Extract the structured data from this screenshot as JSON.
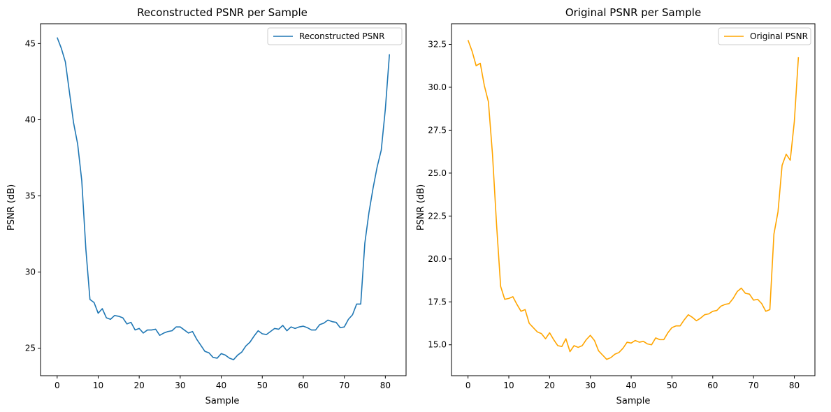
{
  "chart_data": [
    {
      "type": "line",
      "title": "Reconstructed PSNR per Sample",
      "xlabel": "Sample",
      "ylabel": "PSNR (dB)",
      "xlim": [
        -4.05,
        85.05
      ],
      "ylim": [
        23.2,
        46.3
      ],
      "xticks": [
        0,
        10,
        20,
        30,
        40,
        50,
        60,
        70,
        80
      ],
      "xtick_labels": [
        "0",
        "10",
        "20",
        "30",
        "40",
        "50",
        "60",
        "70",
        "80"
      ],
      "yticks": [
        25,
        30,
        35,
        40,
        45
      ],
      "ytick_labels": [
        "25",
        "30",
        "35",
        "40",
        "45"
      ],
      "grid": false,
      "legend_position": "top-right",
      "series": [
        {
          "name": "Reconstructed PSNR",
          "color": "#1f77b4",
          "x": [
            0,
            1,
            2,
            3,
            4,
            5,
            6,
            7,
            8,
            9,
            10,
            11,
            12,
            13,
            14,
            15,
            16,
            17,
            18,
            19,
            20,
            21,
            22,
            23,
            24,
            25,
            26,
            27,
            28,
            29,
            30,
            31,
            32,
            33,
            34,
            35,
            36,
            37,
            38,
            39,
            40,
            41,
            42,
            43,
            44,
            45,
            46,
            47,
            48,
            49,
            50,
            51,
            52,
            53,
            54,
            55,
            56,
            57,
            58,
            59,
            60,
            61,
            62,
            63,
            64,
            65,
            66,
            67,
            68,
            69,
            70,
            71,
            72,
            73,
            74,
            75,
            76,
            77,
            78,
            79,
            80,
            81
          ],
          "values": [
            45.4,
            44.7,
            43.8,
            41.8,
            39.8,
            38.4,
            36.0,
            31.5,
            28.2,
            28.0,
            27.3,
            27.6,
            27.0,
            26.9,
            27.15,
            27.1,
            27.0,
            26.6,
            26.7,
            26.2,
            26.3,
            26.0,
            26.2,
            26.2,
            26.25,
            25.85,
            26.0,
            26.1,
            26.15,
            26.4,
            26.4,
            26.2,
            26.0,
            26.1,
            25.6,
            25.2,
            24.8,
            24.7,
            24.4,
            24.35,
            24.65,
            24.55,
            24.35,
            24.25,
            24.55,
            24.75,
            25.15,
            25.4,
            25.8,
            26.15,
            25.95,
            25.9,
            26.1,
            26.3,
            26.25,
            26.5,
            26.15,
            26.4,
            26.3,
            26.4,
            26.45,
            26.35,
            26.2,
            26.2,
            26.55,
            26.65,
            26.85,
            26.75,
            26.7,
            26.35,
            26.4,
            26.9,
            27.2,
            27.9,
            27.9,
            31.9,
            33.9,
            35.5,
            36.9,
            38.0,
            40.7,
            44.3
          ]
        }
      ]
    },
    {
      "type": "line",
      "title": "Original PSNR per Sample",
      "xlabel": "Sample",
      "ylabel": "PSNR (dB)",
      "xlim": [
        -4.05,
        85.05
      ],
      "ylim": [
        13.2,
        33.7
      ],
      "xticks": [
        0,
        10,
        20,
        30,
        40,
        50,
        60,
        70,
        80
      ],
      "xtick_labels": [
        "0",
        "10",
        "20",
        "30",
        "40",
        "50",
        "60",
        "70",
        "80"
      ],
      "yticks": [
        15.0,
        17.5,
        20.0,
        22.5,
        25.0,
        27.5,
        30.0,
        32.5
      ],
      "ytick_labels": [
        "15.0",
        "17.5",
        "20.0",
        "22.5",
        "25.0",
        "27.5",
        "30.0",
        "32.5"
      ],
      "grid": false,
      "legend_position": "top-right",
      "series": [
        {
          "name": "Original PSNR",
          "color": "#ffa500",
          "x": [
            0,
            1,
            2,
            3,
            4,
            5,
            6,
            7,
            8,
            9,
            10,
            11,
            12,
            13,
            14,
            15,
            16,
            17,
            18,
            19,
            20,
            21,
            22,
            23,
            24,
            25,
            26,
            27,
            28,
            29,
            30,
            31,
            32,
            33,
            34,
            35,
            36,
            37,
            38,
            39,
            40,
            41,
            42,
            43,
            44,
            45,
            46,
            47,
            48,
            49,
            50,
            51,
            52,
            53,
            54,
            55,
            56,
            57,
            58,
            59,
            60,
            61,
            62,
            63,
            64,
            65,
            66,
            67,
            68,
            69,
            70,
            71,
            72,
            73,
            74,
            75,
            76,
            77,
            78,
            79,
            80,
            81
          ],
          "values": [
            32.75,
            32.1,
            31.25,
            31.4,
            30.1,
            29.15,
            26.1,
            22.0,
            18.4,
            17.65,
            17.7,
            17.8,
            17.35,
            16.95,
            17.05,
            16.25,
            16.0,
            15.75,
            15.65,
            15.35,
            15.7,
            15.3,
            14.95,
            14.9,
            15.35,
            14.6,
            14.95,
            14.85,
            14.95,
            15.3,
            15.55,
            15.25,
            14.65,
            14.4,
            14.15,
            14.25,
            14.45,
            14.55,
            14.8,
            15.15,
            15.1,
            15.25,
            15.15,
            15.2,
            15.05,
            15.0,
            15.4,
            15.3,
            15.3,
            15.7,
            16.0,
            16.1,
            16.1,
            16.45,
            16.75,
            16.6,
            16.4,
            16.55,
            16.75,
            16.8,
            16.95,
            17.0,
            17.25,
            17.35,
            17.4,
            17.7,
            18.1,
            18.3,
            18.0,
            17.95,
            17.6,
            17.65,
            17.4,
            16.95,
            17.05,
            21.45,
            22.75,
            25.45,
            26.1,
            25.75,
            28.0,
            31.75
          ]
        }
      ]
    }
  ]
}
